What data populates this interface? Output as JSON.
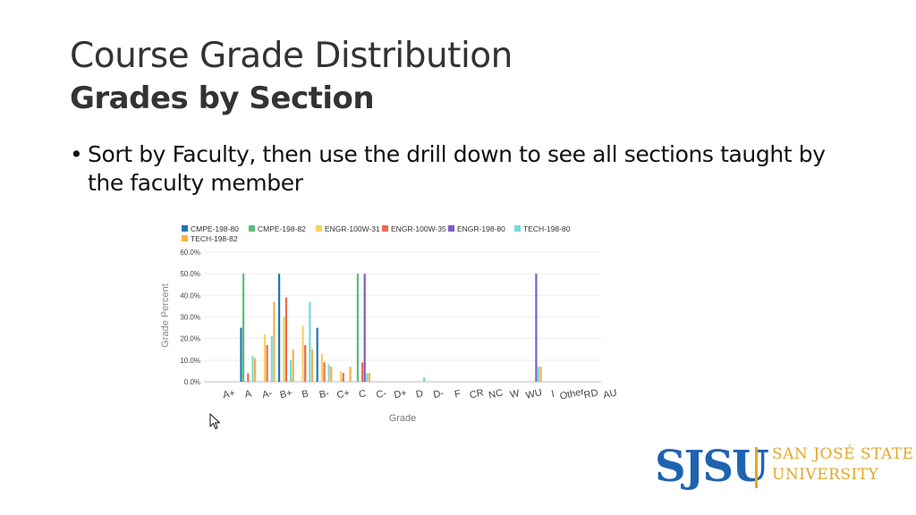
{
  "slide": {
    "title": "Course Grade Distribution",
    "subtitle": "Grades by Section",
    "bullet_symbol": "•",
    "bullet_text": "Sort by Faculty, then use the drill down to see all sections taught by the faculty member"
  },
  "logo": {
    "mark": "SJSU",
    "line1": "SAN JOSÉ STATE",
    "line2": "UNIVERSITY"
  },
  "chart_data": {
    "type": "bar",
    "title": "",
    "xlabel": "Grade",
    "ylabel": "Grade Percent",
    "ylim": [
      0,
      60
    ],
    "yticks": [
      "0.0%",
      "10.0%",
      "20.0%",
      "30.0%",
      "40.0%",
      "50.0%",
      "60.0%"
    ],
    "categories": [
      "A+",
      "A",
      "A-",
      "B+",
      "B",
      "B-",
      "C+",
      "C",
      "C-",
      "D+",
      "D",
      "D-",
      "F",
      "CR",
      "NC",
      "W",
      "WU",
      "I",
      "Other",
      "RD",
      "AU"
    ],
    "series": [
      {
        "name": "CMPE-198-80",
        "color": "#1f77b4",
        "values": [
          0,
          25,
          0,
          50,
          0,
          25,
          0,
          0,
          0,
          0,
          0,
          0,
          0,
          0,
          0,
          0,
          0,
          0,
          0,
          0,
          0
        ]
      },
      {
        "name": "CMPE-198-82",
        "color": "#5cbd7c",
        "values": [
          0,
          50,
          0,
          0,
          0,
          0,
          0,
          50,
          0,
          0,
          0,
          0,
          0,
          0,
          0,
          0,
          0,
          0,
          0,
          0,
          0
        ]
      },
      {
        "name": "ENGR-100W-31",
        "color": "#f6d35f",
        "values": [
          0,
          0,
          22,
          30,
          26,
          13,
          5,
          0,
          0,
          0,
          0,
          0,
          0,
          0,
          0,
          0,
          0,
          0,
          0,
          0,
          0
        ]
      },
      {
        "name": "ENGR-100W-35",
        "color": "#ef6a4f",
        "values": [
          0,
          4,
          17,
          39,
          17,
          9,
          4,
          9,
          0,
          0,
          0,
          0,
          0,
          0,
          0,
          0,
          0,
          0,
          0,
          0,
          0
        ]
      },
      {
        "name": "ENGR-198-80",
        "color": "#7e5cc8",
        "values": [
          0,
          0,
          0,
          0,
          0,
          0,
          0,
          50,
          0,
          0,
          0,
          0,
          0,
          0,
          0,
          0,
          50,
          0,
          0,
          0,
          0
        ]
      },
      {
        "name": "TECH-198-80",
        "color": "#74dcd8",
        "values": [
          0,
          12,
          21,
          10,
          37,
          8,
          0,
          4,
          0,
          0,
          2,
          0,
          0,
          0,
          0,
          0,
          7,
          0,
          0,
          0,
          0
        ]
      },
      {
        "name": "TECH-198-82",
        "color": "#f7b04a",
        "values": [
          0,
          11,
          37,
          15,
          15,
          7,
          7,
          4,
          0,
          0,
          0,
          0,
          0,
          0,
          0,
          0,
          7,
          0,
          0,
          0,
          0
        ]
      }
    ]
  }
}
